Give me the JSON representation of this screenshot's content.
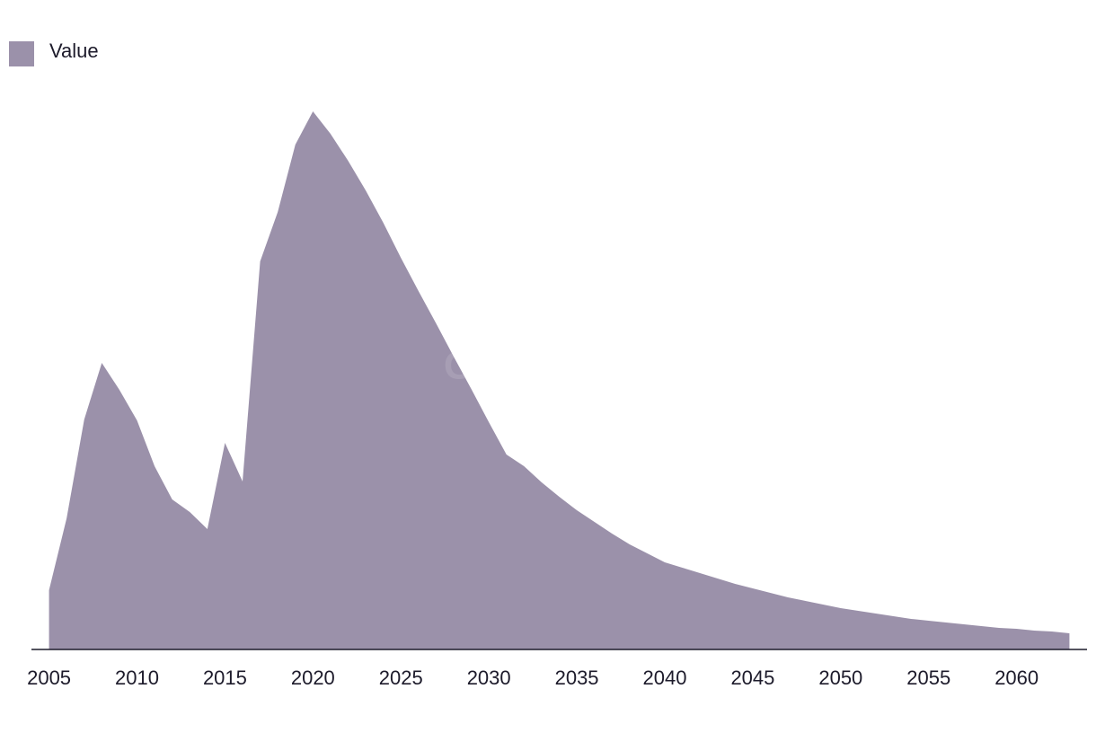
{
  "chart_data": {
    "type": "area",
    "watermark": "GlobalData",
    "x": [
      2005,
      2006,
      2007,
      2008,
      2009,
      2010,
      2011,
      2012,
      2013,
      2014,
      2015,
      2016,
      2017,
      2018,
      2019,
      2020,
      2021,
      2022,
      2023,
      2024,
      2025,
      2026,
      2027,
      2028,
      2029,
      2030,
      2031,
      2032,
      2033,
      2034,
      2035,
      2036,
      2037,
      2038,
      2039,
      2040,
      2041,
      2042,
      2043,
      2044,
      2045,
      2046,
      2047,
      2048,
      2049,
      2050,
      2051,
      2052,
      2053,
      2054,
      2055,
      2056,
      2057,
      2058,
      2059,
      2060,
      2061,
      2062,
      2063
    ],
    "series": [
      {
        "name": "Value",
        "color": "#9b91aa",
        "values": [
          66,
          146,
          256,
          319,
          289,
          255,
          204,
          167,
          153,
          134,
          230,
          187,
          432,
          487,
          562,
          599,
          574,
          544,
          511,
          475,
          436,
          399,
          363,
          326,
          290,
          253,
          217,
          204,
          186,
          170,
          155,
          142,
          129,
          117,
          107,
          97,
          91,
          85,
          79,
          73,
          68,
          63,
          58,
          54,
          50,
          46,
          43,
          40,
          37,
          34,
          32,
          30,
          28,
          26,
          24,
          23,
          21,
          20,
          18
        ]
      }
    ],
    "xlim": [
      2004,
      2064
    ],
    "ylim": [
      0,
      600
    ],
    "xticks": [
      2005,
      2010,
      2015,
      2020,
      2025,
      2030,
      2035,
      2040,
      2045,
      2050,
      2055,
      2060
    ],
    "legend": "top-left"
  }
}
